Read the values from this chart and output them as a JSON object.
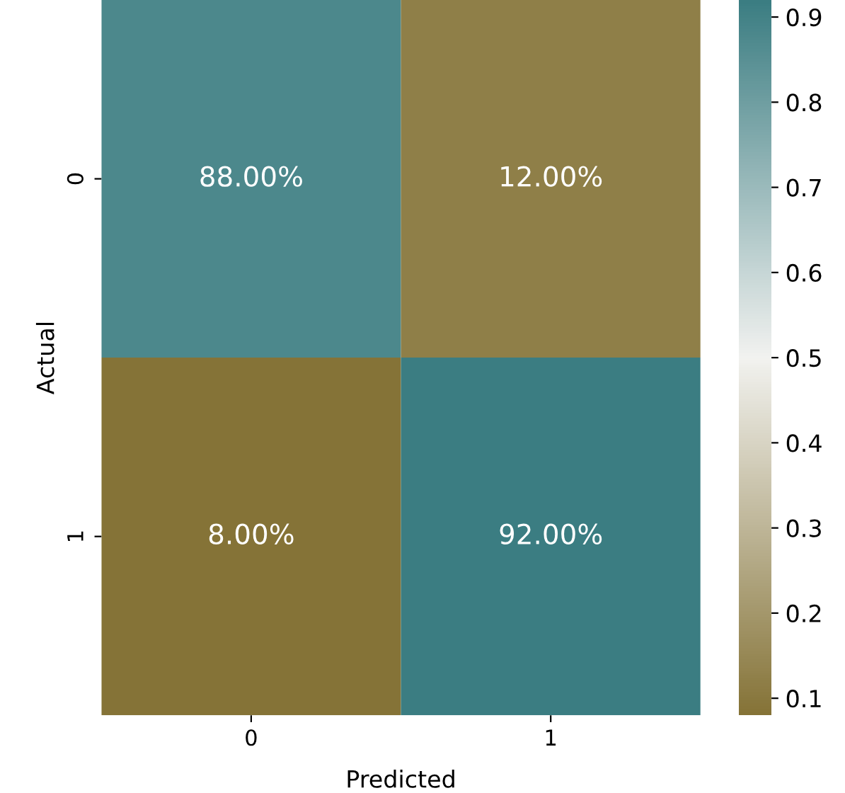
{
  "chart_data": {
    "type": "heatmap",
    "xlabel": "Predicted",
    "ylabel": "Actual",
    "categories": [
      "0",
      "1"
    ],
    "y_categories": [
      "0",
      "1"
    ],
    "cells": [
      [
        0.88,
        0.12
      ],
      [
        0.08,
        0.92
      ]
    ],
    "cell_labels": [
      [
        "88.00%",
        "12.00%"
      ],
      [
        "8.00%",
        "92.00%"
      ]
    ],
    "clim": [
      0.08,
      0.92
    ],
    "cticks": [
      0.1,
      0.2,
      0.3,
      0.4,
      0.5,
      0.6,
      0.7,
      0.8,
      0.9
    ]
  }
}
